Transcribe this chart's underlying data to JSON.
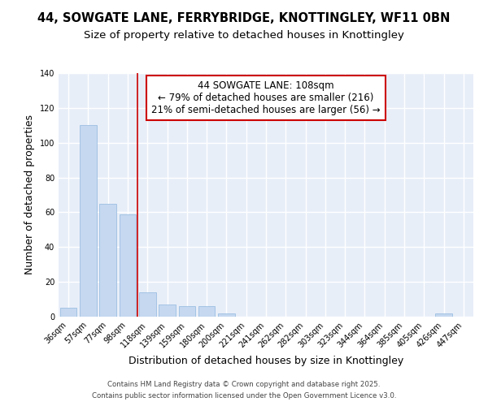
{
  "title_line1": "44, SOWGATE LANE, FERRYBRIDGE, KNOTTINGLEY, WF11 0BN",
  "title_line2": "Size of property relative to detached houses in Knottingley",
  "xlabel": "Distribution of detached houses by size in Knottingley",
  "ylabel": "Number of detached properties",
  "categories": [
    "36sqm",
    "57sqm",
    "77sqm",
    "98sqm",
    "118sqm",
    "139sqm",
    "159sqm",
    "180sqm",
    "200sqm",
    "221sqm",
    "241sqm",
    "262sqm",
    "282sqm",
    "303sqm",
    "323sqm",
    "344sqm",
    "364sqm",
    "385sqm",
    "405sqm",
    "426sqm",
    "447sqm"
  ],
  "values": [
    5,
    110,
    65,
    59,
    14,
    7,
    6,
    6,
    2,
    0,
    0,
    0,
    0,
    0,
    0,
    0,
    0,
    0,
    0,
    2,
    0
  ],
  "bar_color": "#c5d8f0",
  "bar_edge_color": "#90b8de",
  "annotation_title": "44 SOWGATE LANE: 108sqm",
  "annotation_line1": "← 79% of detached houses are smaller (216)",
  "annotation_line2": "21% of semi-detached houses are larger (56) →",
  "annotation_box_color": "#ffffff",
  "annotation_box_edge": "#cc0000",
  "ylim": [
    0,
    140
  ],
  "yticks": [
    0,
    20,
    40,
    60,
    80,
    100,
    120,
    140
  ],
  "background_color": "#e8eef8",
  "grid_color": "#ffffff",
  "fig_background": "#ffffff",
  "footer_line1": "Contains HM Land Registry data © Crown copyright and database right 2025.",
  "footer_line2": "Contains public sector information licensed under the Open Government Licence v3.0.",
  "title_fontsize": 10.5,
  "subtitle_fontsize": 9.5,
  "axis_label_fontsize": 9,
  "tick_fontsize": 7,
  "annotation_fontsize": 8.5
}
